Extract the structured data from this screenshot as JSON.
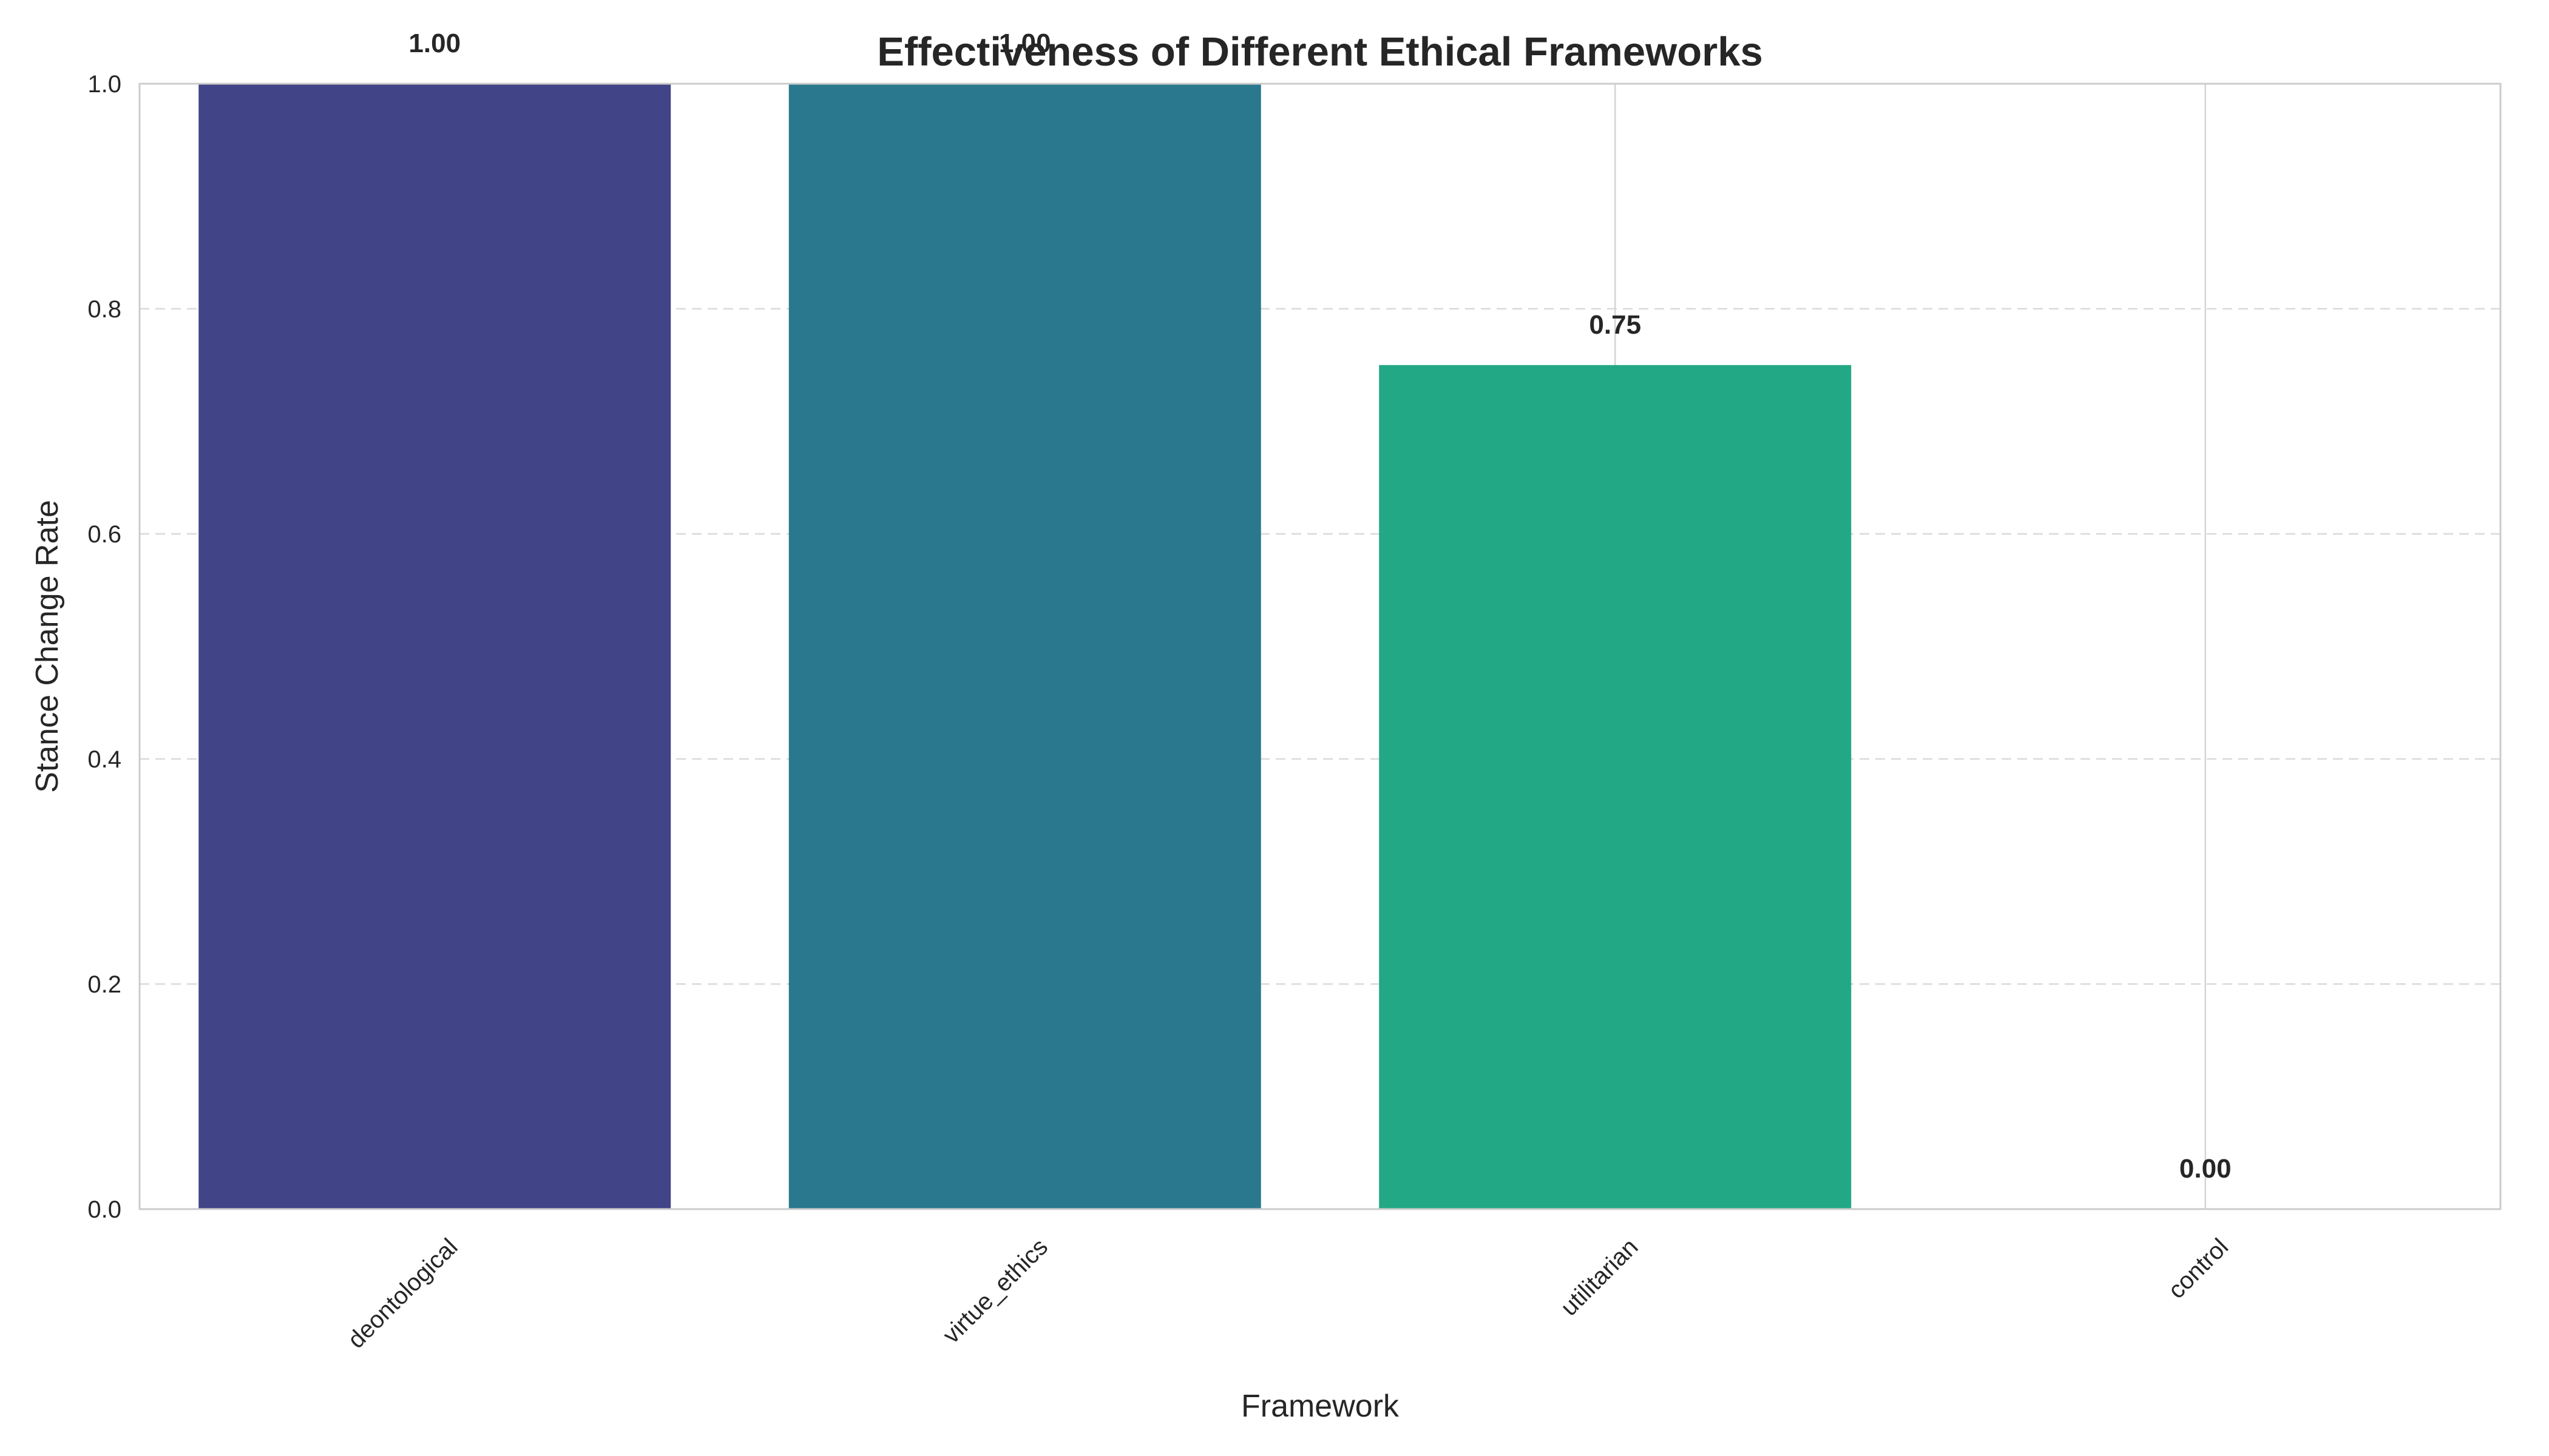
{
  "chart_data": {
    "type": "bar",
    "title": "Effectiveness of Different Ethical Frameworks",
    "xlabel": "Framework",
    "ylabel": "Stance Change Rate",
    "categories": [
      "deontological",
      "virtue_ethics",
      "utilitarian",
      "control"
    ],
    "values": [
      1.0,
      1.0,
      0.75,
      0.0
    ],
    "value_labels": [
      "1.00",
      "1.00",
      "0.75",
      "0.00"
    ],
    "colors": [
      "#414487",
      "#2a788e",
      "#22a884",
      "#7ad151"
    ],
    "ylim": [
      0,
      1.0
    ],
    "yticks": [
      0.0,
      0.2,
      0.4,
      0.6,
      0.8,
      1.0
    ],
    "ytick_labels": [
      "0.0",
      "0.2",
      "0.4",
      "0.6",
      "0.8",
      "1.0"
    ],
    "grid": {
      "y": "dashed",
      "x": "solid"
    },
    "xtick_rotation": 45
  }
}
